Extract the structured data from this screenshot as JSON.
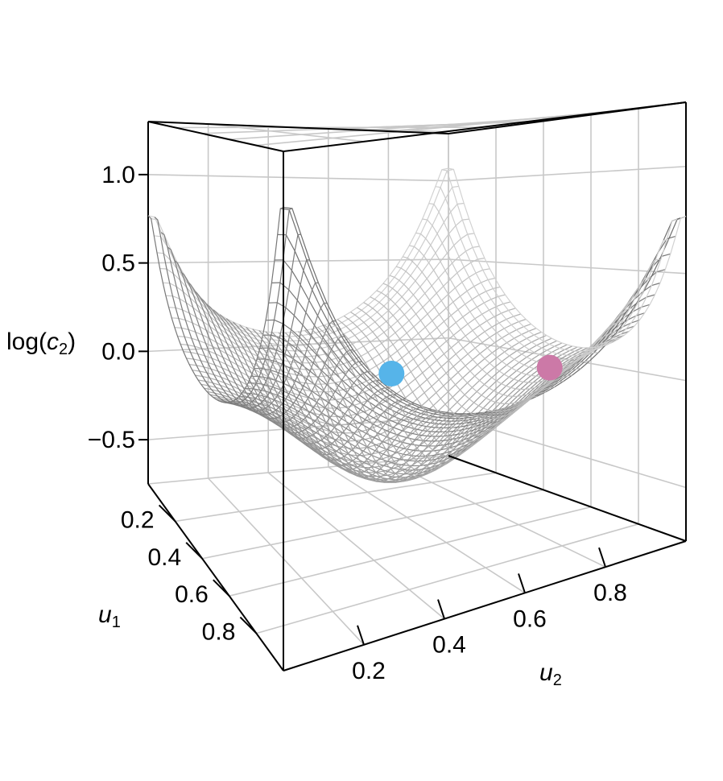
{
  "chart_data": {
    "type": "surface3d",
    "z_label": {
      "main": "log(",
      "var": "c",
      "sub": "2",
      "close": ")"
    },
    "u1_label": {
      "var": "u",
      "sub": "1"
    },
    "u2_label": {
      "var": "u",
      "sub": "2"
    },
    "z_ticks": [
      {
        "value": 1.0,
        "label": "1.0"
      },
      {
        "value": 0.5,
        "label": "0.5"
      },
      {
        "value": 0.0,
        "label": "0.0"
      },
      {
        "value": -0.5,
        "label": "−0.5"
      }
    ],
    "u1_ticks": [
      {
        "value": 0.2,
        "label": "0.2"
      },
      {
        "value": 0.4,
        "label": "0.4"
      },
      {
        "value": 0.6,
        "label": "0.6"
      },
      {
        "value": 0.8,
        "label": "0.8"
      }
    ],
    "u2_ticks": [
      {
        "value": 0.2,
        "label": "0.2"
      },
      {
        "value": 0.4,
        "label": "0.4"
      },
      {
        "value": 0.6,
        "label": "0.6"
      },
      {
        "value": 0.8,
        "label": "0.8"
      }
    ],
    "zlim": [
      -0.75,
      1.3
    ],
    "u1_range": [
      0,
      1
    ],
    "u2_range": [
      0,
      1
    ],
    "points": [
      {
        "u1": 0.5,
        "u2": 0.5,
        "z": 0.07,
        "color": "#56b4e9"
      },
      {
        "u1": 0.5,
        "u2": 0.95,
        "z": -0.03,
        "color": "#cc79a7"
      }
    ],
    "surface_color": "#8c8c8c",
    "grid": true
  }
}
